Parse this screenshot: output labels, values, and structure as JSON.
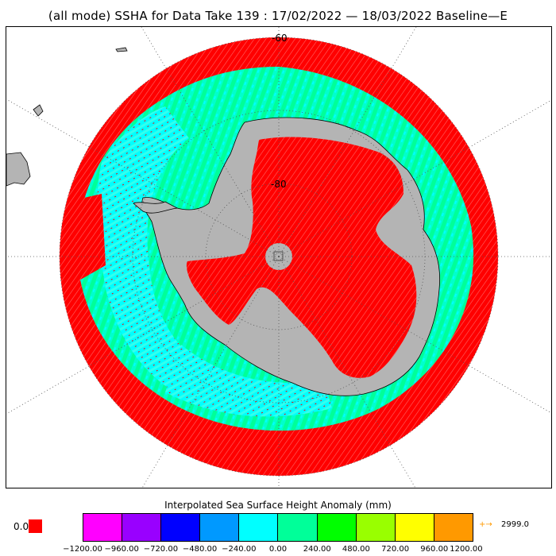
{
  "title": "(all mode) SSHA for Data Take 139 : 17/02/2022 — 18/03/2022 Baseline—E",
  "map": {
    "projection": "south polar stereographic",
    "latitude_labels": [
      "-60",
      "-80"
    ],
    "colors": {
      "land": "#b4b4b4",
      "outside_range": "#ff0000",
      "ocean_near_zero": "#00ffff",
      "ocean_positive": "#00ff99",
      "graticule": "#555555"
    }
  },
  "legend": {
    "title": "Interpolated Sea Surface Height Anomaly (mm)",
    "zero_swatch_label": "0.0",
    "zero_swatch_color": "#ff0000",
    "bins": [
      {
        "color": "#ff00ff"
      },
      {
        "color": "#9900ff"
      },
      {
        "color": "#0000ff"
      },
      {
        "color": "#0099ff"
      },
      {
        "color": "#00ffff"
      },
      {
        "color": "#00ff99"
      },
      {
        "color": "#00ff00"
      },
      {
        "color": "#99ff00"
      },
      {
        "color": "#ffff00"
      },
      {
        "color": "#ff9900"
      }
    ],
    "tick_labels": [
      "−1200.00",
      "−960.00",
      "−720.00",
      "−480.00",
      "−240.00",
      "0.00",
      "240.00",
      "480.00",
      "720.00",
      "960.00",
      "1200.00"
    ],
    "overflow_arrow": "+→",
    "overflow_value": "2999.0",
    "overflow_color": "#ff9900"
  }
}
